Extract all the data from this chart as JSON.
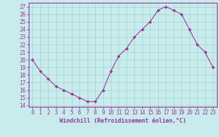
{
  "x": [
    0,
    1,
    2,
    3,
    4,
    5,
    6,
    7,
    8,
    9,
    10,
    11,
    12,
    13,
    14,
    15,
    16,
    17,
    18,
    19,
    20,
    21,
    22,
    23
  ],
  "y": [
    20,
    18.5,
    17.5,
    16.5,
    16,
    15.5,
    15,
    14.5,
    14.5,
    16,
    18.5,
    20.5,
    21.5,
    23,
    24,
    25,
    26.5,
    27,
    26.5,
    26,
    24,
    22,
    21,
    19
  ],
  "line_color": "#993399",
  "marker": "D",
  "marker_size": 2,
  "bg_color": "#c8ecec",
  "grid_color": "#a8d4d4",
  "xlabel": "Windchill (Refroidissement éolien,°C)",
  "xlabel_fontsize": 6,
  "ylabel_ticks": [
    14,
    15,
    16,
    17,
    18,
    19,
    20,
    21,
    22,
    23,
    24,
    25,
    26,
    27
  ],
  "xlim": [
    -0.5,
    23.5
  ],
  "ylim": [
    13.8,
    27.5
  ],
  "tick_fontsize": 5.5,
  "axis_color": "#993399",
  "spine_color": "#993399"
}
